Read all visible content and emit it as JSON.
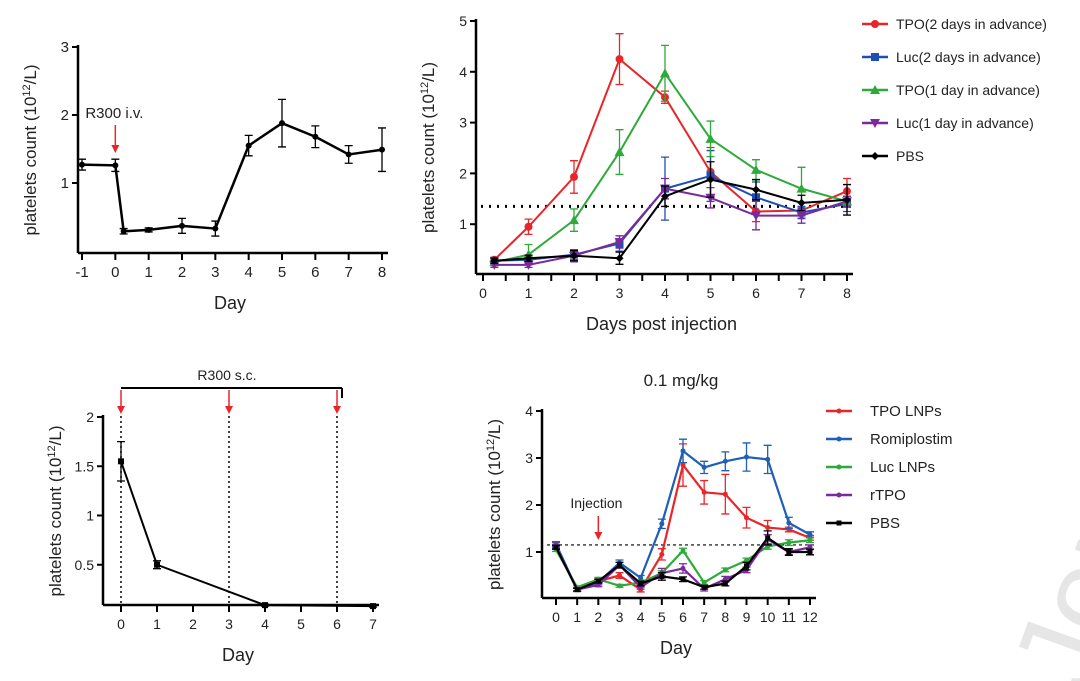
{
  "watermark": "Jour",
  "chart_data": [
    {
      "type": "line",
      "title": "",
      "xlabel": "Day",
      "ylabel": "platelets count (10^12/L)",
      "ylim": [
        0,
        3
      ],
      "xlim": [
        -1,
        8
      ],
      "xticks": [
        "-1",
        "0",
        "1",
        "2",
        "3",
        "4",
        "5",
        "6",
        "7",
        "8"
      ],
      "yticks": [
        "1",
        "2",
        "3"
      ],
      "annotation": "R300 i.v.",
      "annotation_x": 0,
      "series": [
        {
          "name": "R300 i.v.",
          "color": "#000000",
          "marker": "circle",
          "x": [
            -1,
            0,
            0.25,
            1,
            2,
            3,
            4,
            5,
            6,
            7,
            8
          ],
          "y": [
            1.27,
            1.26,
            0.29,
            0.31,
            0.37,
            0.33,
            1.55,
            1.88,
            1.68,
            1.42,
            1.49
          ],
          "err": [
            0.08,
            0.09,
            0.04,
            0.03,
            0.11,
            0.11,
            0.15,
            0.35,
            0.16,
            0.13,
            0.32
          ]
        }
      ]
    },
    {
      "type": "line",
      "title": "",
      "xlabel": "Days post injection",
      "ylabel": "platelets count (10^12/L)",
      "ylim": [
        0,
        5
      ],
      "xlim": [
        0,
        8
      ],
      "xticks": [
        "0",
        "1",
        "2",
        "3",
        "4",
        "5",
        "6",
        "7",
        "8"
      ],
      "yticks": [
        "1",
        "2",
        "3",
        "4",
        "5"
      ],
      "reference_line": 1.35,
      "legend": "right",
      "series": [
        {
          "name": "TPO(2 days in advance)",
          "color": "#e8262a",
          "marker": "circle",
          "x": [
            0.25,
            1,
            2,
            3,
            4,
            5,
            6,
            7,
            8
          ],
          "y": [
            0.3,
            0.95,
            1.93,
            4.25,
            3.5,
            2.03,
            1.25,
            1.27,
            1.65
          ],
          "err": [
            0.05,
            0.15,
            0.32,
            0.5,
            0.12,
            0.48,
            0.2,
            0.15,
            0.25
          ]
        },
        {
          "name": "Luc(2 days in advance)",
          "color": "#1f4fb5",
          "marker": "square",
          "x": [
            0.25,
            1,
            2,
            3,
            4,
            5,
            6,
            7,
            8
          ],
          "y": [
            0.28,
            0.3,
            0.4,
            0.62,
            1.7,
            1.95,
            1.53,
            1.23,
            1.4
          ],
          "err": [
            0.05,
            0.08,
            0.1,
            0.15,
            0.62,
            0.5,
            0.3,
            0.12,
            0.15
          ]
        },
        {
          "name": "TPO(1 day in advance)",
          "color": "#2eaa3a",
          "marker": "triangle",
          "x": [
            0.25,
            1,
            2,
            3,
            4,
            5,
            6,
            7,
            8
          ],
          "y": [
            0.25,
            0.4,
            1.08,
            2.42,
            3.97,
            2.68,
            2.07,
            1.7,
            1.45
          ],
          "err": [
            0.05,
            0.2,
            0.22,
            0.44,
            0.55,
            0.35,
            0.2,
            0.42,
            0.1
          ]
        },
        {
          "name": "Luc(1 day in advance)",
          "color": "#7a2a9a",
          "marker": "triangle-down",
          "x": [
            0.25,
            1,
            2,
            3,
            4,
            5,
            6,
            7,
            8
          ],
          "y": [
            0.2,
            0.2,
            0.38,
            0.65,
            1.7,
            1.52,
            1.17,
            1.17,
            1.45
          ],
          "err": [
            0.05,
            0.05,
            0.12,
            0.12,
            0.2,
            0.2,
            0.28,
            0.15,
            0.1
          ]
        },
        {
          "name": "PBS",
          "color": "#000000",
          "marker": "diamond",
          "x": [
            0.25,
            1,
            2,
            3,
            4,
            5,
            6,
            7,
            8
          ],
          "y": [
            0.28,
            0.33,
            0.38,
            0.33,
            1.55,
            1.88,
            1.68,
            1.42,
            1.48
          ],
          "err": [
            0.05,
            0.06,
            0.1,
            0.12,
            0.2,
            0.35,
            0.2,
            0.15,
            0.3
          ]
        }
      ]
    },
    {
      "type": "line",
      "title": "",
      "xlabel": "Day",
      "ylabel": "platelets count (10^12/L)",
      "ylim": [
        0,
        2
      ],
      "xlim": [
        0,
        7
      ],
      "xticks": [
        "0",
        "1",
        "2",
        "3",
        "4",
        "5",
        "6",
        "7"
      ],
      "yticks": [
        "0.5",
        "1",
        "1.5",
        "2"
      ],
      "annotation": "R300 s.c.",
      "dose_days": [
        0,
        3,
        6
      ],
      "series": [
        {
          "name": "R300 s.c.",
          "color": "#000000",
          "marker": "square",
          "x": [
            0,
            1,
            4,
            7
          ],
          "y": [
            1.55,
            0.5,
            0.09,
            0.08
          ],
          "err": [
            0.2,
            0.04,
            0.01,
            0.01
          ]
        }
      ]
    },
    {
      "type": "line",
      "title": "0.1 mg/kg",
      "xlabel": "Day",
      "ylabel": "platelets count (10^12/L)",
      "ylim": [
        0,
        4
      ],
      "xlim": [
        0,
        12
      ],
      "xticks": [
        "0",
        "1",
        "2",
        "3",
        "4",
        "5",
        "6",
        "7",
        "8",
        "9",
        "10",
        "11",
        "12"
      ],
      "yticks": [
        "1",
        "2",
        "3",
        "4"
      ],
      "reference_line": 1.15,
      "annotation": "Injection",
      "annotation_x": 2,
      "legend": "right",
      "series": [
        {
          "name": "TPO LNPs",
          "color": "#e8262a",
          "marker": "dot",
          "x": [
            0,
            1,
            2,
            3,
            4,
            5,
            6,
            7,
            8,
            9,
            10,
            11,
            12
          ],
          "y": [
            1.15,
            0.2,
            0.38,
            0.5,
            0.2,
            0.95,
            2.85,
            2.27,
            2.23,
            1.73,
            1.52,
            1.48,
            1.3
          ],
          "err": [
            0.05,
            0.04,
            0.05,
            0.06,
            0.05,
            0.12,
            0.45,
            0.25,
            0.42,
            0.22,
            0.15,
            0.05,
            0.05
          ]
        },
        {
          "name": "Romiplostim",
          "color": "#1f5fb5",
          "marker": "dot",
          "x": [
            0,
            1,
            2,
            3,
            4,
            5,
            6,
            7,
            8,
            9,
            10,
            11,
            12
          ],
          "y": [
            1.17,
            0.2,
            0.35,
            0.77,
            0.45,
            1.6,
            3.15,
            2.8,
            2.93,
            3.02,
            2.97,
            1.62,
            1.37
          ],
          "err": [
            0.05,
            0.04,
            0.05,
            0.06,
            0.05,
            0.1,
            0.25,
            0.13,
            0.2,
            0.3,
            0.3,
            0.12,
            0.06
          ]
        },
        {
          "name": "Luc LNPs",
          "color": "#2eaa3a",
          "marker": "dot",
          "x": [
            0,
            1,
            2,
            3,
            4,
            5,
            6,
            7,
            8,
            9,
            10,
            11,
            12
          ],
          "y": [
            1.05,
            0.25,
            0.42,
            0.28,
            0.35,
            0.55,
            1.03,
            0.35,
            0.62,
            0.82,
            1.12,
            1.2,
            1.25
          ],
          "err": [
            0.04,
            0.03,
            0.04,
            0.03,
            0.04,
            0.05,
            0.05,
            0.04,
            0.04,
            0.05,
            0.06,
            0.06,
            0.05
          ]
        },
        {
          "name": "rTPO",
          "color": "#7a2a9a",
          "marker": "dot",
          "x": [
            0,
            1,
            2,
            3,
            4,
            5,
            6,
            7,
            8,
            9,
            10,
            11,
            12
          ],
          "y": [
            1.12,
            0.2,
            0.3,
            0.72,
            0.25,
            0.55,
            0.65,
            0.22,
            0.42,
            0.62,
            1.27,
            1.0,
            1.1
          ],
          "err": [
            0.04,
            0.03,
            0.04,
            0.06,
            0.04,
            0.1,
            0.1,
            0.05,
            0.06,
            0.06,
            0.1,
            0.06,
            0.05
          ]
        },
        {
          "name": "PBS",
          "color": "#000000",
          "marker": "square",
          "x": [
            0,
            1,
            2,
            3,
            4,
            5,
            6,
            7,
            8,
            9,
            10,
            11,
            12
          ],
          "y": [
            1.1,
            0.2,
            0.38,
            0.72,
            0.33,
            0.48,
            0.42,
            0.25,
            0.33,
            0.7,
            1.3,
            1.0,
            1.0
          ],
          "err": [
            0.04,
            0.03,
            0.04,
            0.06,
            0.05,
            0.08,
            0.05,
            0.04,
            0.05,
            0.08,
            0.15,
            0.07,
            0.06
          ]
        }
      ]
    }
  ]
}
